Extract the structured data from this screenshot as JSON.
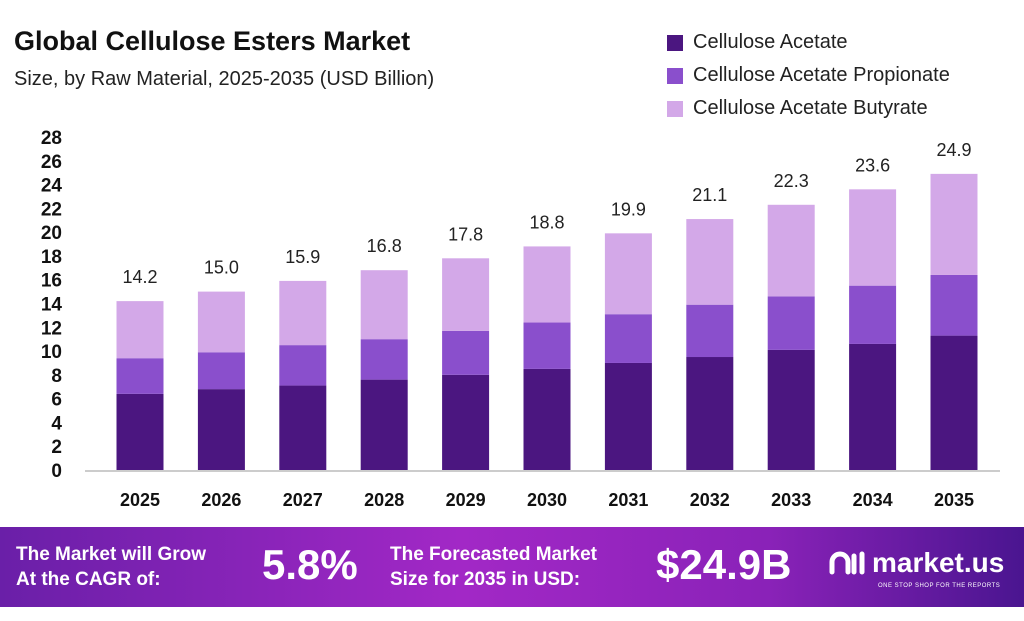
{
  "chart_data": {
    "type": "bar",
    "stacked": true,
    "title": "Global Cellulose Esters Market",
    "subtitle": "Size, by Raw Material, 2025-2035 (USD Billion)",
    "categories": [
      "2025",
      "2026",
      "2027",
      "2028",
      "2029",
      "2030",
      "2031",
      "2032",
      "2033",
      "2034",
      "2035"
    ],
    "series": [
      {
        "name": "Cellulose Acetate",
        "color": "#4b1680",
        "values": [
          6.4,
          6.8,
          7.1,
          7.6,
          8.0,
          8.5,
          9.0,
          9.5,
          10.1,
          10.6,
          11.3
        ]
      },
      {
        "name": "Cellulose Acetate Propionate",
        "color": "#8a4fcc",
        "values": [
          3.0,
          3.1,
          3.4,
          3.4,
          3.7,
          3.9,
          4.1,
          4.4,
          4.5,
          4.9,
          5.1
        ]
      },
      {
        "name": "Cellulose Acetate Butyrate",
        "color": "#d3a8e8",
        "values": [
          4.8,
          5.1,
          5.4,
          5.8,
          6.1,
          6.4,
          6.8,
          7.2,
          7.7,
          8.1,
          8.5
        ]
      }
    ],
    "totals": [
      "14.2",
      "15.0",
      "15.9",
      "16.8",
      "17.8",
      "18.8",
      "19.9",
      "21.1",
      "22.3",
      "23.6",
      "24.9"
    ],
    "ylim": [
      0,
      28
    ],
    "yticks": [
      "0",
      "2",
      "4",
      "6",
      "8",
      "10",
      "12",
      "14",
      "16",
      "18",
      "20",
      "22",
      "24",
      "26",
      "28"
    ],
    "grid": false,
    "legend": "top-right"
  },
  "banner": {
    "cagr_label_1": "The Market will Grow",
    "cagr_label_2": "At the CAGR of:",
    "cagr_value": "5.8%",
    "forecast_label_1": "The Forecasted Market",
    "forecast_label_2": "Size for 2035 in USD:",
    "forecast_value": "$24.9B",
    "logo_name": "market.us",
    "logo_tagline": "ONE STOP SHOP FOR THE REPORTS"
  }
}
